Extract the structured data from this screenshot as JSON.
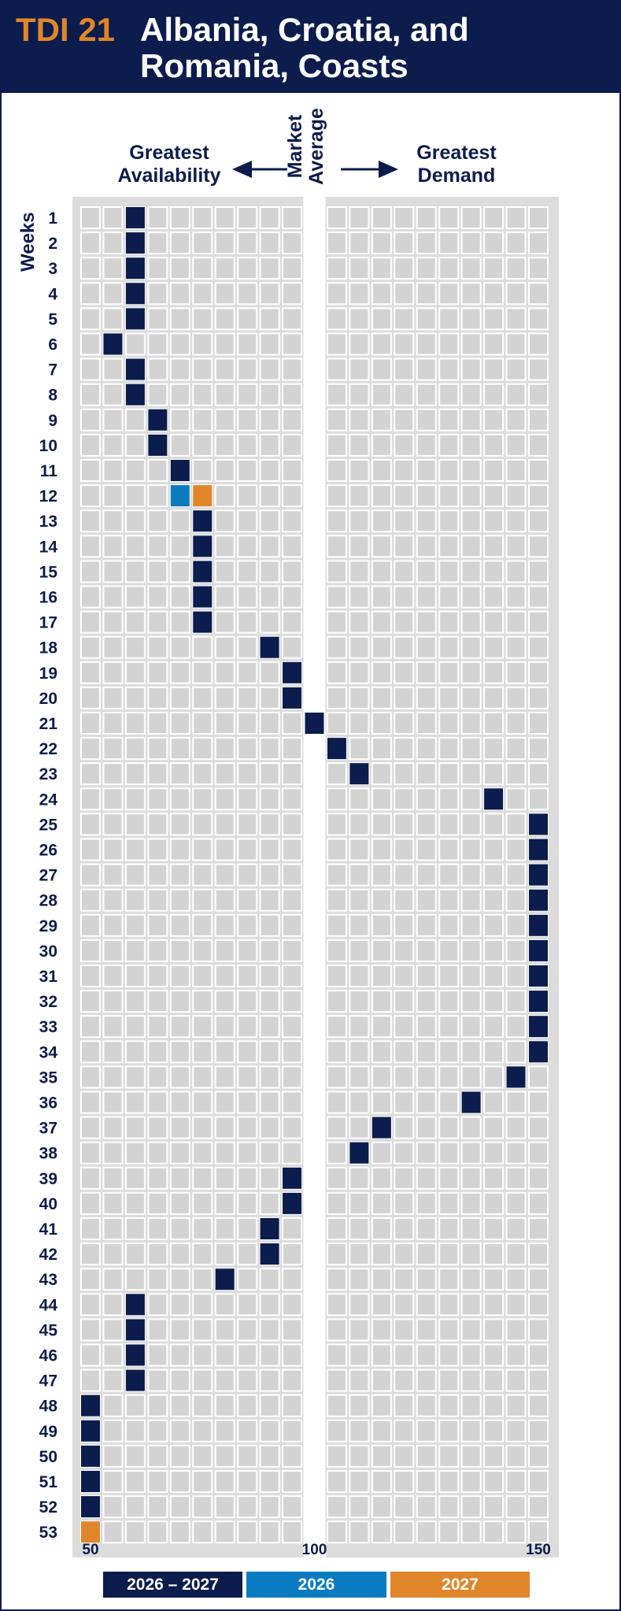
{
  "header": {
    "tdi_label": "TDI 21",
    "title_line1": "Albania, Croatia, and",
    "title_line2": "Romania, Coasts"
  },
  "labels": {
    "availability": [
      "Greatest",
      "Availability"
    ],
    "demand": [
      "Greatest",
      "Demand"
    ],
    "market": [
      "Market",
      "Average"
    ],
    "weeks": "Weeks"
  },
  "legend": [
    {
      "label": "2026 – 2027",
      "color": "#0b1c4d"
    },
    {
      "label": "2026",
      "color": "#0a7bc1"
    },
    {
      "label": "2027",
      "color": "#e0862a"
    }
  ],
  "colors": {
    "header_bg": "#0b1c4d",
    "accent": "#e0862a",
    "grid_bg": "#dcdcdc",
    "cell": "#d3d3d3"
  },
  "chart_data": {
    "type": "heatmap",
    "x_axis": {
      "min": 50,
      "max": 150,
      "step": 5,
      "tick_labels": [
        "50",
        "100",
        "150"
      ]
    },
    "weeks": [
      1,
      2,
      3,
      4,
      5,
      6,
      7,
      8,
      9,
      10,
      11,
      12,
      13,
      14,
      15,
      16,
      17,
      18,
      19,
      20,
      21,
      22,
      23,
      24,
      25,
      26,
      27,
      28,
      29,
      30,
      31,
      32,
      33,
      34,
      35,
      36,
      37,
      38,
      39,
      40,
      41,
      42,
      43,
      44,
      45,
      46,
      47,
      48,
      49,
      50,
      51,
      52,
      53
    ],
    "series": [
      {
        "name": "2026 – 2027",
        "color": "#0b1c4d",
        "points": [
          [
            1,
            60
          ],
          [
            2,
            60
          ],
          [
            3,
            60
          ],
          [
            4,
            60
          ],
          [
            5,
            60
          ],
          [
            6,
            55
          ],
          [
            7,
            60
          ],
          [
            8,
            60
          ],
          [
            9,
            65
          ],
          [
            10,
            65
          ],
          [
            11,
            70
          ],
          [
            13,
            75
          ],
          [
            14,
            75
          ],
          [
            15,
            75
          ],
          [
            16,
            75
          ],
          [
            17,
            75
          ],
          [
            18,
            90
          ],
          [
            19,
            95
          ],
          [
            20,
            95
          ],
          [
            21,
            100
          ],
          [
            22,
            105
          ],
          [
            23,
            110
          ],
          [
            24,
            140
          ],
          [
            25,
            150
          ],
          [
            26,
            150
          ],
          [
            27,
            150
          ],
          [
            28,
            150
          ],
          [
            29,
            150
          ],
          [
            30,
            150
          ],
          [
            31,
            150
          ],
          [
            32,
            150
          ],
          [
            33,
            150
          ],
          [
            34,
            150
          ],
          [
            35,
            145
          ],
          [
            36,
            135
          ],
          [
            37,
            115
          ],
          [
            38,
            110
          ],
          [
            39,
            95
          ],
          [
            40,
            95
          ],
          [
            41,
            90
          ],
          [
            42,
            90
          ],
          [
            43,
            80
          ],
          [
            44,
            60
          ],
          [
            45,
            60
          ],
          [
            46,
            60
          ],
          [
            47,
            60
          ],
          [
            48,
            50
          ],
          [
            49,
            50
          ],
          [
            50,
            50
          ],
          [
            51,
            50
          ],
          [
            52,
            50
          ]
        ]
      },
      {
        "name": "2026",
        "color": "#0a7bc1",
        "points": [
          [
            12,
            70
          ]
        ]
      },
      {
        "name": "2027",
        "color": "#e0862a",
        "points": [
          [
            12,
            75
          ],
          [
            53,
            50
          ]
        ]
      }
    ]
  }
}
